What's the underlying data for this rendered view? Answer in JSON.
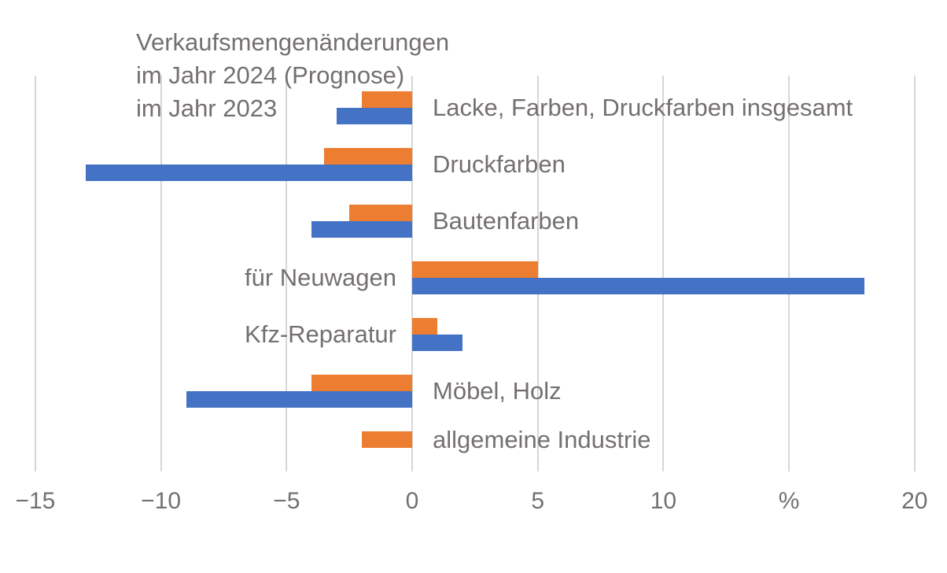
{
  "chart_data": {
    "type": "bar",
    "orientation": "horizontal",
    "title": "Verkaufsmengenänderungen",
    "subtitle": "",
    "unit": "%",
    "legend": [
      {
        "label": "im Jahr 2024 (Prognose)",
        "color": "#ED7D31"
      },
      {
        "label": "im Jahr 2023",
        "color": "#4472C4"
      }
    ],
    "legend_position": "top-left-as-title-lines",
    "categories": [
      "Lacke, Farben, Druckfarben insgesamt",
      "Druckfarben",
      "Bautenfarben",
      "für Neuwagen",
      "Kfz-Reparatur",
      "Möbel, Holz",
      "allgemeine Industrie"
    ],
    "series": [
      {
        "name": "im Jahr 2024 (Prognose)",
        "color": "#ED7D31",
        "values": [
          -2,
          -3.5,
          -2.5,
          5,
          1,
          -4,
          -2
        ]
      },
      {
        "name": "im Jahr 2023",
        "color": "#4472C4",
        "values": [
          -3,
          -13,
          -4,
          18,
          2,
          -9,
          null
        ]
      }
    ],
    "xlim": [
      -15,
      20
    ],
    "x_tick_values": [
      -15,
      -10,
      -5,
      0,
      5,
      10,
      15,
      20
    ],
    "x_tick_labels": [
      "−15",
      "−10",
      "−5",
      "0",
      "5",
      "10",
      "%",
      "20"
    ],
    "grid": true,
    "grid_color": "#d6d6d6",
    "text_color": "#757070",
    "background_color": "#ffffff"
  }
}
